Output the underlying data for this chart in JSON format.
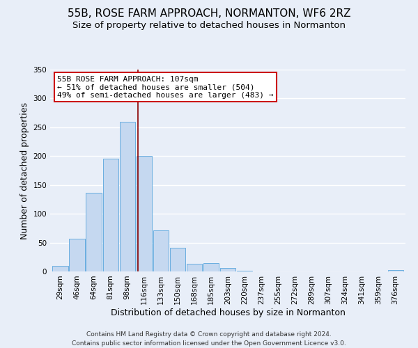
{
  "title": "55B, ROSE FARM APPROACH, NORMANTON, WF6 2RZ",
  "subtitle": "Size of property relative to detached houses in Normanton",
  "xlabel": "Distribution of detached houses by size in Normanton",
  "ylabel": "Number of detached properties",
  "bar_labels": [
    "29sqm",
    "46sqm",
    "64sqm",
    "81sqm",
    "98sqm",
    "116sqm",
    "133sqm",
    "150sqm",
    "168sqm",
    "185sqm",
    "203sqm",
    "220sqm",
    "237sqm",
    "255sqm",
    "272sqm",
    "289sqm",
    "307sqm",
    "324sqm",
    "341sqm",
    "359sqm",
    "376sqm"
  ],
  "bar_values": [
    10,
    57,
    136,
    195,
    260,
    200,
    71,
    41,
    13,
    14,
    6,
    1,
    0,
    0,
    0,
    0,
    0,
    0,
    0,
    0,
    2
  ],
  "bar_color": "#c5d8f0",
  "bar_edgecolor": "#6aaee0",
  "ylim": [
    0,
    350
  ],
  "yticks": [
    0,
    50,
    100,
    150,
    200,
    250,
    300,
    350
  ],
  "vline_x_index": 4.62,
  "vline_color": "#8B0000",
  "annotation_text": "55B ROSE FARM APPROACH: 107sqm\n← 51% of detached houses are smaller (504)\n49% of semi-detached houses are larger (483) →",
  "annotation_box_color": "#ffffff",
  "annotation_border_color": "#cc0000",
  "footer_line1": "Contains HM Land Registry data © Crown copyright and database right 2024.",
  "footer_line2": "Contains public sector information licensed under the Open Government Licence v3.0.",
  "background_color": "#e8eef8",
  "grid_color": "#ffffff",
  "title_fontsize": 11,
  "subtitle_fontsize": 9.5,
  "axis_label_fontsize": 9,
  "tick_fontsize": 7.5,
  "annotation_fontsize": 8,
  "footer_fontsize": 6.5
}
